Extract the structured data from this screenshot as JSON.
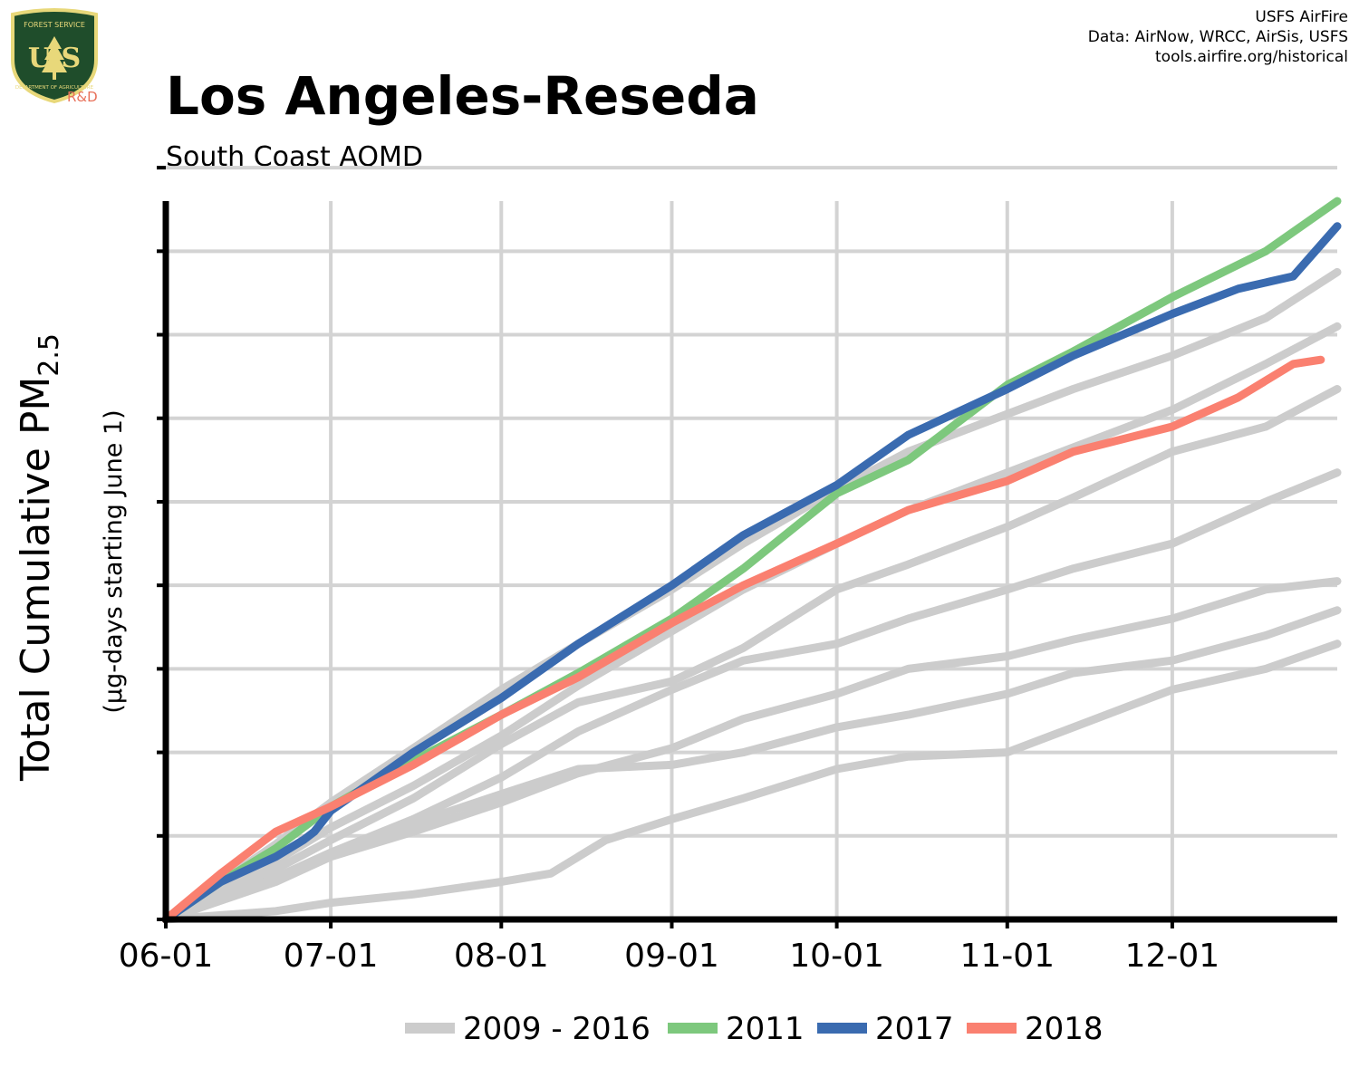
{
  "header": {
    "title": "Los Angeles-Reseda",
    "subtitle": "South Coast AQMD",
    "credits": [
      "USFS AirFire",
      "Data: AirNow, WRCC, AirSis, USFS",
      "tools.airfire.org/historical"
    ]
  },
  "logo": {
    "top_text": "FOREST SERVICE",
    "letters": "U S",
    "bottom_text": "DEPARTMENT OF AGRICULTURE",
    "tag": "R&D",
    "colors": {
      "shield": "#1f4d2b",
      "rim": "#e8d87a",
      "letters": "#e8d87a",
      "tag": "#e8715a"
    }
  },
  "chart_data": {
    "type": "line",
    "title": "Los Angeles-Reseda",
    "subtitle": "South Coast AQMD",
    "ylabel": "Total Cumulative PM2.5",
    "ylabel_main": "Total Cumulative PM",
    "ylabel_subscript": "2.5",
    "ylabel_secondary": "(µg-days starting June 1)",
    "xlabel": "",
    "x_ticks": [
      "06-01",
      "07-01",
      "08-01",
      "09-01",
      "10-01",
      "11-01",
      "12-01"
    ],
    "x_tick_days": [
      0,
      30,
      61,
      92,
      122,
      153,
      183
    ],
    "xlim": [
      0,
      213
    ],
    "y_grid_units": [
      0,
      1,
      2,
      3,
      4,
      5,
      6,
      7,
      8,
      9
    ],
    "ylim": [
      0,
      8.6
    ],
    "y_tick_labels_shown": false,
    "grid": true,
    "legend_position": "bottom",
    "legend": [
      {
        "label": "2009 - 2016",
        "color": "#cccccc"
      },
      {
        "label": "2011",
        "color": "#7dc87d"
      },
      {
        "label": "2017",
        "color": "#3a6bb0"
      },
      {
        "label": "2018",
        "color": "#fa8070"
      }
    ],
    "series": [
      {
        "name": "2009 - 2016",
        "color": "#cccccc",
        "x": [
          0,
          20,
          30,
          45,
          61,
          75,
          92,
          105,
          122,
          135,
          153,
          165,
          183,
          200,
          213
        ],
        "y": [
          0,
          0.9,
          1.4,
          2.05,
          2.75,
          3.3,
          3.95,
          4.5,
          5.15,
          5.6,
          6.05,
          6.35,
          6.75,
          7.2,
          7.75
        ]
      },
      {
        "name": "2009 - 2016",
        "color": "#cccccc",
        "x": [
          0,
          20,
          30,
          45,
          61,
          75,
          92,
          105,
          122,
          135,
          153,
          165,
          183,
          200,
          213
        ],
        "y": [
          0,
          0.7,
          1.1,
          1.6,
          2.2,
          2.8,
          3.45,
          3.95,
          4.5,
          4.9,
          5.35,
          5.65,
          6.1,
          6.65,
          7.1
        ]
      },
      {
        "name": "2009 - 2016",
        "color": "#cccccc",
        "x": [
          0,
          20,
          30,
          45,
          61,
          75,
          92,
          105,
          122,
          135,
          153,
          165,
          183,
          200,
          213
        ],
        "y": [
          0,
          0.6,
          0.95,
          1.45,
          2.1,
          2.6,
          2.85,
          3.25,
          3.95,
          4.25,
          4.7,
          5.05,
          5.6,
          5.9,
          6.35
        ]
      },
      {
        "name": "2009 - 2016",
        "color": "#cccccc",
        "x": [
          0,
          20,
          30,
          45,
          61,
          75,
          92,
          105,
          122,
          135,
          153,
          165,
          183,
          200,
          213
        ],
        "y": [
          0,
          0.5,
          0.8,
          1.2,
          1.7,
          2.25,
          2.75,
          3.1,
          3.3,
          3.6,
          3.95,
          4.2,
          4.5,
          5.0,
          5.35
        ]
      },
      {
        "name": "2009 - 2016",
        "color": "#cccccc",
        "x": [
          0,
          20,
          30,
          45,
          61,
          75,
          92,
          105,
          122,
          135,
          153,
          165,
          183,
          200,
          213
        ],
        "y": [
          0,
          0.45,
          0.75,
          1.05,
          1.4,
          1.75,
          2.05,
          2.4,
          2.7,
          3.0,
          3.15,
          3.35,
          3.6,
          3.95,
          4.05
        ]
      },
      {
        "name": "2009 - 2016",
        "color": "#cccccc",
        "x": [
          0,
          20,
          30,
          45,
          61,
          75,
          92,
          105,
          122,
          135,
          153,
          165,
          183,
          200,
          213
        ],
        "y": [
          0,
          0.5,
          0.8,
          1.15,
          1.5,
          1.8,
          1.85,
          2.0,
          2.3,
          2.45,
          2.7,
          2.95,
          3.1,
          3.4,
          3.7
        ]
      },
      {
        "name": "2009 - 2016",
        "color": "#cccccc",
        "x": [
          0,
          20,
          30,
          45,
          61,
          70,
          80,
          92,
          105,
          122,
          135,
          153,
          165,
          183,
          200,
          213
        ],
        "y": [
          0,
          0.1,
          0.2,
          0.3,
          0.45,
          0.55,
          0.95,
          1.2,
          1.45,
          1.8,
          1.95,
          2.0,
          2.3,
          2.75,
          3.0,
          3.3
        ]
      },
      {
        "name": "2011",
        "color": "#7dc87d",
        "x": [
          0,
          10,
          20,
          30,
          45,
          61,
          75,
          92,
          105,
          122,
          135,
          153,
          165,
          183,
          200,
          213
        ],
        "y": [
          0,
          0.45,
          0.85,
          1.35,
          1.9,
          2.45,
          2.95,
          3.6,
          4.2,
          5.1,
          5.5,
          6.4,
          6.8,
          7.45,
          8.0,
          8.6
        ]
      },
      {
        "name": "2017",
        "color": "#3a6bb0",
        "x": [
          0,
          10,
          20,
          25,
          27,
          30,
          45,
          61,
          75,
          92,
          105,
          122,
          135,
          153,
          165,
          183,
          195,
          205,
          213
        ],
        "y": [
          0,
          0.45,
          0.75,
          0.95,
          1.05,
          1.3,
          2.0,
          2.65,
          3.3,
          4.0,
          4.6,
          5.2,
          5.8,
          6.35,
          6.75,
          7.25,
          7.55,
          7.7,
          8.3
        ]
      },
      {
        "name": "2018",
        "color": "#fa8070",
        "x": [
          0,
          10,
          20,
          30,
          45,
          61,
          75,
          92,
          105,
          122,
          135,
          153,
          165,
          183,
          195,
          205,
          210
        ],
        "y": [
          0,
          0.55,
          1.05,
          1.35,
          1.85,
          2.45,
          2.9,
          3.55,
          4.0,
          4.5,
          4.9,
          5.25,
          5.6,
          5.9,
          6.25,
          6.65,
          6.7
        ]
      }
    ]
  }
}
